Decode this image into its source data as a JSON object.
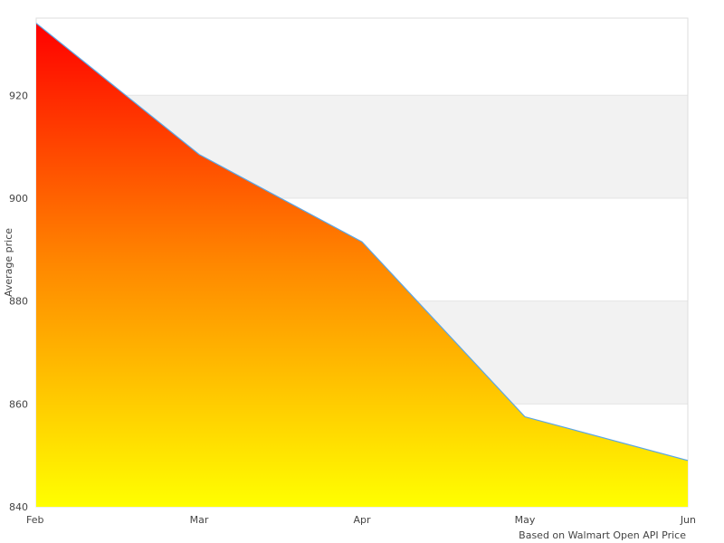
{
  "chart_data": {
    "type": "area",
    "title": "",
    "xlabel": "",
    "ylabel": "Average price",
    "caption": "Based on Walmart Open API Price",
    "x": [
      "Feb",
      "Mar",
      "Apr",
      "May",
      "Jun"
    ],
    "series": [
      {
        "values": [
          934,
          908.5,
          891.5,
          857.5,
          849
        ]
      }
    ],
    "ylim": [
      840,
      935
    ],
    "yticks": [
      840,
      860,
      880,
      900,
      920
    ],
    "grid": "alternating horizontal bands",
    "fill_gradient": {
      "top": "#ff0000",
      "mid": "#ff8800",
      "bottom": "#ffff00"
    },
    "line_color": "#5aa6e6",
    "band_color": "#f2f2f2",
    "frame_color": "#dddddd"
  }
}
